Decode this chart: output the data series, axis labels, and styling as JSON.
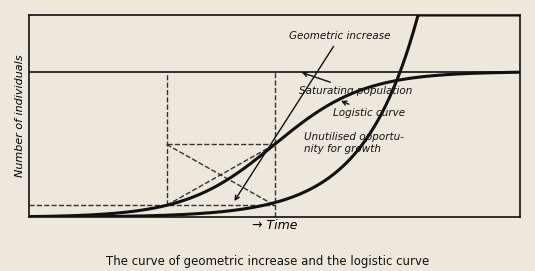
{
  "figsize": [
    5.35,
    2.71
  ],
  "dpi": 100,
  "bg_color": "#ede8dc",
  "plot_bg_color": "#ede8dc",
  "xlim": [
    0,
    10
  ],
  "ylim": [
    0,
    10
  ],
  "saturating_y": 7.2,
  "geo_scale": 0.008,
  "geo_rate": 0.9,
  "logistic_r": 1.1,
  "logistic_x0": 5.0,
  "dash_x1": 2.8,
  "dash_x2": 5.0,
  "title_text": "The curve of geometric increase and the logistic curve",
  "ylabel_text": "Number of individuals",
  "xlabel_text": "→ Time",
  "annotation_geometric": "Geometric increase",
  "annotation_saturating": "Saturating population",
  "annotation_logistic": "Logistic curve",
  "annotation_unutilised": "Unutilised opportu-\nnity for growth",
  "line_color": "#111111",
  "dashed_color": "#333333"
}
